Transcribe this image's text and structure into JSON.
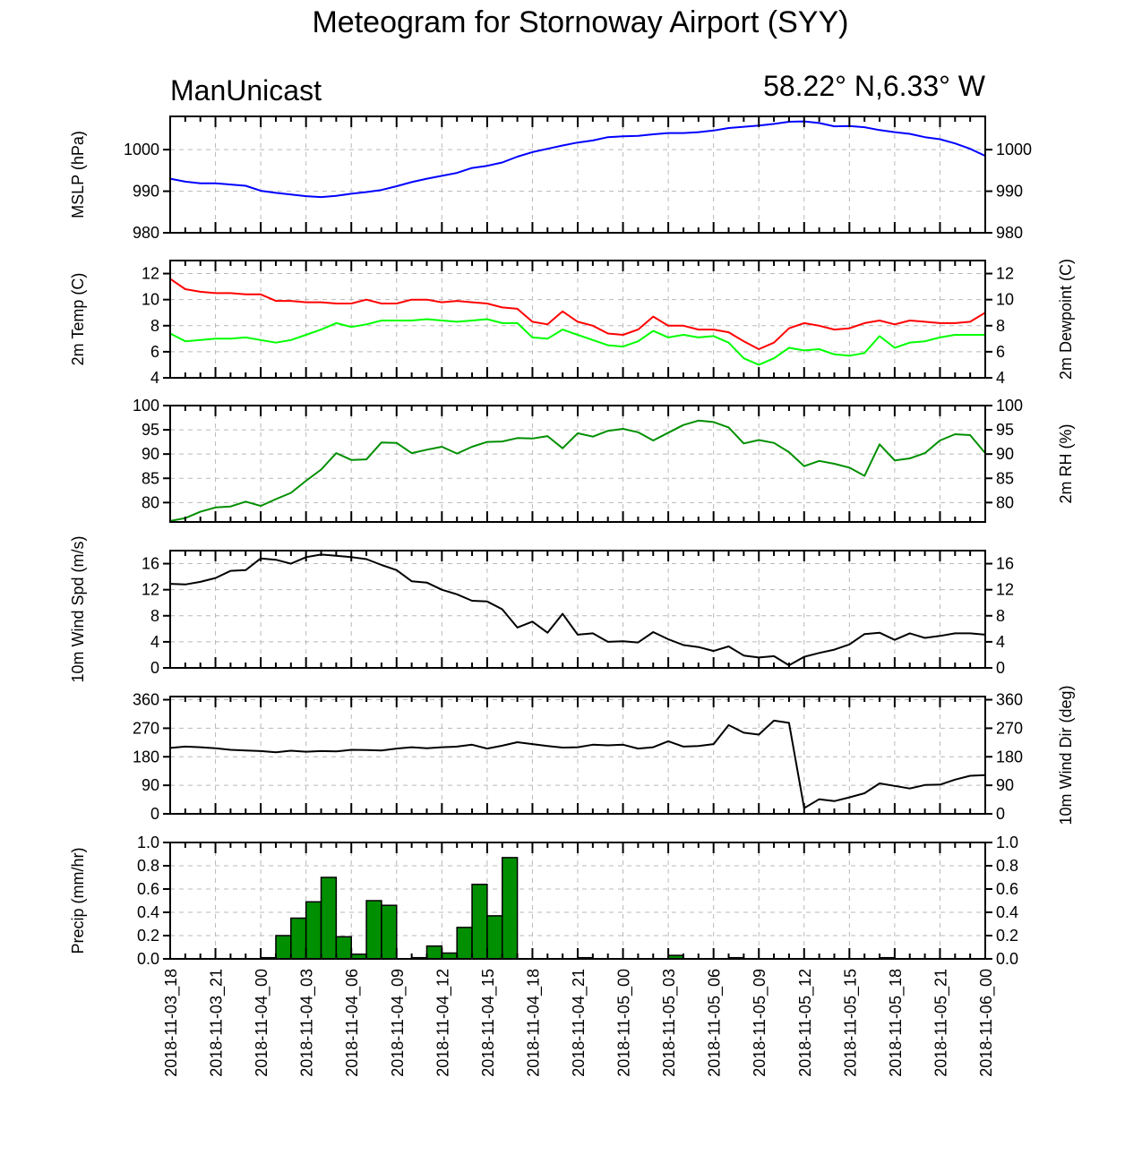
{
  "title": "Meteogram for Stornoway Airport (SYY)",
  "model_label": "ManUnicast",
  "location_label": "58.22° N,6.33° W",
  "time_labels": [
    "2018-11-03_18",
    "2018-11-03_21",
    "2018-11-04_00",
    "2018-11-04_03",
    "2018-11-04_06",
    "2018-11-04_09",
    "2018-11-04_12",
    "2018-11-04_15",
    "2018-11-04_18",
    "2018-11-04_21",
    "2018-11-05_00",
    "2018-11-05_03",
    "2018-11-05_06",
    "2018-11-05_09",
    "2018-11-05_12",
    "2018-11-05_15",
    "2018-11-05_18",
    "2018-11-05_21",
    "2018-11-06_00"
  ],
  "chart_data": [
    {
      "type": "line",
      "ylabel_left": "MSLP (hPa)",
      "ylabel_right": "",
      "ylim": [
        980,
        1008
      ],
      "yticks": [
        980,
        990,
        1000
      ],
      "x_hours": [
        0,
        1,
        2,
        3,
        4,
        5,
        6,
        7,
        8,
        9,
        10,
        11,
        12,
        13,
        14,
        15,
        16,
        17,
        18,
        19,
        20,
        21,
        22,
        23,
        24,
        25,
        26,
        27,
        28,
        29,
        30,
        31,
        32,
        33,
        34,
        35,
        36,
        37,
        38,
        39,
        40,
        41,
        42,
        43,
        44,
        45,
        46,
        47,
        48,
        49,
        50,
        51,
        52,
        53,
        54
      ],
      "series": [
        {
          "color": "#0000ff",
          "values": [
            993,
            992.3,
            991.9,
            991.9,
            991.6,
            991.3,
            990.1,
            989.6,
            989.2,
            988.8,
            988.6,
            988.9,
            989.4,
            989.8,
            990.3,
            991.2,
            992.2,
            993,
            993.7,
            994.4,
            995.6,
            996.1,
            996.9,
            998.3,
            999.4,
            1000.2,
            1001,
            1001.7,
            1002.2,
            1003,
            1003.2,
            1003.3,
            1003.7,
            1004,
            1004,
            1004.2,
            1004.6,
            1005.2,
            1005.5,
            1005.8,
            1006.2,
            1006.7,
            1006.8,
            1006.4,
            1005.6,
            1005.7,
            1005.4,
            1004.7,
            1004.2,
            1003.8,
            1003,
            1002.5,
            1001.5,
            1000.2,
            998.5
          ]
        }
      ]
    },
    {
      "type": "line",
      "ylabel_left": "2m Temp (C)",
      "ylabel_right": "2m Dewpoint (C)",
      "ylim": [
        4,
        13
      ],
      "yticks": [
        4,
        6,
        8,
        10,
        12
      ],
      "x_hours": [
        0,
        1,
        2,
        3,
        4,
        5,
        6,
        7,
        8,
        9,
        10,
        11,
        12,
        13,
        14,
        15,
        16,
        17,
        18,
        19,
        20,
        21,
        22,
        23,
        24,
        25,
        26,
        27,
        28,
        29,
        30,
        31,
        32,
        33,
        34,
        35,
        36,
        37,
        38,
        39,
        40,
        41,
        42,
        43,
        44,
        45,
        46,
        47,
        48,
        49,
        50,
        51,
        52,
        53,
        54
      ],
      "series": [
        {
          "color": "#ff0000",
          "values": [
            11.6,
            10.8,
            10.6,
            10.5,
            10.5,
            10.4,
            10.4,
            9.9,
            9.9,
            9.8,
            9.8,
            9.7,
            9.7,
            10.0,
            9.7,
            9.7,
            10.0,
            10.0,
            9.8,
            9.9,
            9.8,
            9.7,
            9.4,
            9.3,
            8.3,
            8.1,
            9.1,
            8.3,
            8.0,
            7.4,
            7.3,
            7.7,
            8.7,
            8.0,
            8.0,
            7.7,
            7.7,
            7.5,
            6.8,
            6.2,
            6.7,
            7.8,
            8.2,
            8.0,
            7.7,
            7.8,
            8.2,
            8.4,
            8.1,
            8.4,
            8.3,
            8.2,
            8.2,
            8.3,
            9.0
          ]
        },
        {
          "color": "#00ff00",
          "values": [
            7.4,
            6.8,
            6.9,
            7.0,
            7.0,
            7.1,
            6.9,
            6.7,
            6.9,
            7.3,
            7.7,
            8.2,
            7.9,
            8.1,
            8.4,
            8.4,
            8.4,
            8.5,
            8.4,
            8.3,
            8.4,
            8.5,
            8.2,
            8.2,
            7.1,
            7.0,
            7.7,
            7.3,
            6.9,
            6.5,
            6.4,
            6.8,
            7.6,
            7.1,
            7.3,
            7.1,
            7.2,
            6.7,
            5.5,
            5.0,
            5.5,
            6.3,
            6.1,
            6.2,
            5.8,
            5.7,
            5.9,
            7.2,
            6.3,
            6.7,
            6.8,
            7.1,
            7.3,
            7.3,
            7.3
          ]
        }
      ]
    },
    {
      "type": "line",
      "ylabel_left": "",
      "ylabel_right": "2m RH (%)",
      "ylim": [
        76,
        100
      ],
      "yticks": [
        80,
        85,
        90,
        95,
        100
      ],
      "x_hours": [
        0,
        1,
        2,
        3,
        4,
        5,
        6,
        7,
        8,
        9,
        10,
        11,
        12,
        13,
        14,
        15,
        16,
        17,
        18,
        19,
        20,
        21,
        22,
        23,
        24,
        25,
        26,
        27,
        28,
        29,
        30,
        31,
        32,
        33,
        34,
        35,
        36,
        37,
        38,
        39,
        40,
        41,
        42,
        43,
        44,
        45,
        46,
        47,
        48,
        49,
        50,
        51,
        52,
        53,
        54
      ],
      "series": [
        {
          "color": "#008f00",
          "values": [
            76.2,
            76.8,
            78.1,
            79.0,
            79.2,
            80.2,
            79.3,
            80.7,
            82.0,
            84.5,
            86.8,
            90.2,
            88.8,
            88.9,
            92.4,
            92.3,
            90.2,
            90.9,
            91.5,
            90.1,
            91.5,
            92.5,
            92.6,
            93.3,
            93.2,
            93.7,
            91.2,
            94.3,
            93.6,
            94.8,
            95.2,
            94.5,
            92.8,
            94.4,
            96.0,
            96.9,
            96.6,
            95.5,
            92.2,
            92.9,
            92.3,
            90.4,
            87.5,
            88.6,
            88.0,
            87.2,
            85.5,
            92.0,
            88.7,
            89.1,
            90.2,
            92.8,
            94.1,
            93.9,
            90.2
          ]
        }
      ]
    },
    {
      "type": "line",
      "ylabel_left": "10m Wind Spd (m/s)",
      "ylabel_right": "",
      "ylim": [
        0,
        18
      ],
      "yticks": [
        0,
        4,
        8,
        12,
        16
      ],
      "x_hours": [
        0,
        1,
        2,
        3,
        4,
        5,
        6,
        7,
        8,
        9,
        10,
        11,
        12,
        13,
        14,
        15,
        16,
        17,
        18,
        19,
        20,
        21,
        22,
        23,
        24,
        25,
        26,
        27,
        28,
        29,
        30,
        31,
        32,
        33,
        34,
        35,
        36,
        37,
        38,
        39,
        40,
        41,
        42,
        43,
        44,
        45,
        46,
        47,
        48,
        49,
        50,
        51,
        52,
        53,
        54
      ],
      "series": [
        {
          "color": "#000000",
          "values": [
            12.9,
            12.8,
            13.2,
            13.8,
            14.9,
            15.0,
            16.8,
            16.6,
            16.0,
            17.0,
            17.4,
            17.2,
            17.0,
            16.7,
            15.8,
            15.0,
            13.3,
            13.1,
            12.0,
            11.3,
            10.3,
            10.2,
            9.0,
            6.2,
            7.1,
            5.4,
            8.3,
            5.1,
            5.3,
            4.0,
            4.1,
            3.9,
            5.5,
            4.4,
            3.5,
            3.2,
            2.6,
            3.3,
            1.9,
            1.6,
            1.8,
            0.4,
            1.7,
            2.3,
            2.8,
            3.6,
            5.2,
            5.4,
            4.3,
            5.3,
            4.6,
            4.9,
            5.3,
            5.3,
            5.1
          ]
        }
      ]
    },
    {
      "type": "line",
      "ylabel_left": "",
      "ylabel_right": "10m Wind Dir (deg)",
      "ylim": [
        0,
        370
      ],
      "yticks": [
        0,
        90,
        180,
        270,
        360
      ],
      "x_hours": [
        0,
        1,
        2,
        3,
        4,
        5,
        6,
        7,
        8,
        9,
        10,
        11,
        12,
        13,
        14,
        15,
        16,
        17,
        18,
        19,
        20,
        21,
        22,
        23,
        24,
        25,
        26,
        27,
        28,
        29,
        30,
        31,
        32,
        33,
        34,
        35,
        36,
        37,
        38,
        39,
        40,
        41,
        42,
        43,
        44,
        45,
        46,
        47,
        48,
        49,
        50,
        51,
        52,
        53,
        54
      ],
      "series": [
        {
          "color": "#000000",
          "values": [
            208,
            212,
            210,
            207,
            202,
            200,
            198,
            194,
            199,
            196,
            198,
            197,
            202,
            201,
            200,
            206,
            210,
            207,
            210,
            212,
            218,
            206,
            215,
            226,
            220,
            214,
            209,
            210,
            218,
            216,
            218,
            206,
            210,
            229,
            212,
            214,
            220,
            280,
            256,
            250,
            294,
            287,
            18,
            46,
            40,
            52,
            65,
            96,
            88,
            80,
            91,
            92,
            108,
            120,
            122
          ]
        }
      ]
    },
    {
      "type": "bar",
      "ylabel_left": "Precip (mm/hr)",
      "ylabel_right": "",
      "ylim": [
        0,
        1.0
      ],
      "yticks": [
        0.0,
        0.2,
        0.4,
        0.6,
        0.8,
        1.0
      ],
      "x_hours": [
        0,
        1,
        2,
        3,
        4,
        5,
        6,
        7,
        8,
        9,
        10,
        11,
        12,
        13,
        14,
        15,
        16,
        17,
        18,
        19,
        20,
        21,
        22,
        23,
        24,
        25,
        26,
        27,
        28,
        29,
        30,
        31,
        32,
        33,
        34,
        35,
        36,
        37,
        38,
        39,
        40,
        41,
        42,
        43,
        44,
        45,
        46,
        47,
        48,
        49,
        50,
        51,
        52,
        53
      ],
      "series": [
        {
          "color": "#008f00",
          "values": [
            0,
            0,
            0,
            0,
            0,
            0,
            0.01,
            0.2,
            0.35,
            0.49,
            0.7,
            0.19,
            0.04,
            0.5,
            0.46,
            0,
            0.01,
            0.11,
            0.05,
            0.27,
            0.64,
            0.37,
            0.87,
            0,
            0,
            0,
            0,
            0.01,
            0,
            0,
            0,
            0,
            0,
            0.03,
            0,
            0,
            0,
            0.01,
            0,
            0,
            0,
            0,
            0,
            0,
            0,
            0,
            0,
            0.01,
            0,
            0,
            0,
            0,
            0,
            0
          ]
        }
      ]
    }
  ]
}
